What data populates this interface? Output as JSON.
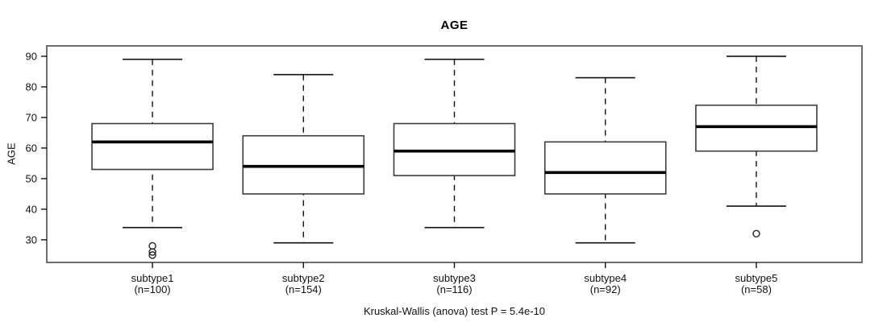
{
  "chart_data": {
    "type": "boxplot",
    "title": "AGE",
    "ylabel": "AGE",
    "xlabel": "",
    "caption": "Kruskal-Wallis (anova) test P = 5.4e-10",
    "p_value": "5.4e-10",
    "grid": false,
    "legend": "none",
    "background_color": "#ffffff",
    "box_fill_color": "#ffffff",
    "line_color": "#000000",
    "ylim": [
      22.6,
      93.4
    ],
    "yticks": [
      30,
      40,
      50,
      60,
      70,
      80,
      90
    ],
    "categories": [
      "subtype1",
      "subtype2",
      "subtype3",
      "subtype4",
      "subtype5"
    ],
    "counts": [
      100,
      154,
      116,
      92,
      58
    ],
    "series": [
      {
        "label": "subtype1",
        "sublabel": "(n=100)",
        "n": 100,
        "whisker_low": 34,
        "q1": 53,
        "median": 62,
        "q3": 68,
        "whisker_high": 89,
        "outliers": [
          28,
          26,
          25
        ]
      },
      {
        "label": "subtype2",
        "sublabel": "(n=154)",
        "n": 154,
        "whisker_low": 29,
        "q1": 45,
        "median": 54,
        "q3": 64,
        "whisker_high": 84,
        "outliers": []
      },
      {
        "label": "subtype3",
        "sublabel": "(n=116)",
        "n": 116,
        "whisker_low": 34,
        "q1": 51,
        "median": 59,
        "q3": 68,
        "whisker_high": 89,
        "outliers": []
      },
      {
        "label": "subtype4",
        "sublabel": "(n=92)",
        "n": 92,
        "whisker_low": 29,
        "q1": 45,
        "median": 52,
        "q3": 62,
        "whisker_high": 83,
        "outliers": []
      },
      {
        "label": "subtype5",
        "sublabel": "(n=58)",
        "n": 58,
        "whisker_low": 41,
        "q1": 59,
        "median": 67,
        "q3": 74,
        "whisker_high": 90,
        "outliers": [
          32
        ]
      }
    ]
  }
}
